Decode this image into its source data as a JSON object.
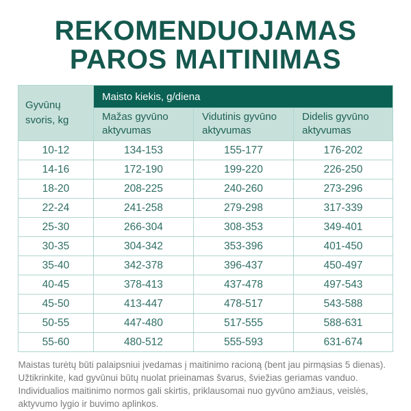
{
  "title": {
    "line1": "REKOMENDUOJAMAS",
    "line2": "PAROS MAITINIMAS"
  },
  "table": {
    "weight_header": "Gyvūnų\nsvoris, kg",
    "group_header": "Maisto kiekis, g/diena",
    "activity_headers": [
      "Mažas gyvūno aktyvumas",
      "Vidutinis gyvūno aktyvumas",
      "Didelis gyvūno aktyvumas"
    ]
  },
  "footer": {
    "text": "Maistas turėtų būti palaipsniui įvedamas į maitinimo racioną (bent jau pirmąsias 5 dienas). Užtikrinkite, kad gyvūnui būtų nuolat prieinamas švarus, šviežias geriamas vanduo. Individualios maitinimo normos gali skirtis, priklausomai nuo gyvūno amžiaus, veislės, aktyvumo lygio ir buvimo aplinkos."
  },
  "colors": {
    "title_text": "#15584E",
    "header_dark_bg": "#0B6154",
    "header_mint_bg": "#C7E1DA",
    "header_text": "#1D5F55",
    "body_text": "#2E6E64",
    "grid_border": "#AED5CD",
    "footer_text": "#7A7A7A"
  },
  "chart_data": {
    "type": "table",
    "title": "REKOMENDUOJAMAS PAROS MAITINIMAS",
    "column_group_label": "Maisto kiekis, g/diena",
    "columns": [
      "Gyvūnų svoris, kg",
      "Mažas gyvūno aktyvumas",
      "Vidutinis gyvūno aktyvumas",
      "Didelis gyvūno aktyvumas"
    ],
    "rows": [
      [
        "10-12",
        "134-153",
        "155-177",
        "176-202"
      ],
      [
        "14-16",
        "172-190",
        "199-220",
        "226-250"
      ],
      [
        "18-20",
        "208-225",
        "240-260",
        "273-296"
      ],
      [
        "22-24",
        "241-258",
        "279-298",
        "317-339"
      ],
      [
        "25-30",
        "266-304",
        "308-353",
        "349-401"
      ],
      [
        "30-35",
        "304-342",
        "353-396",
        "401-450"
      ],
      [
        "35-40",
        "342-378",
        "396-437",
        "450-497"
      ],
      [
        "40-45",
        "378-413",
        "437-478",
        "497-543"
      ],
      [
        "45-50",
        "413-447",
        "478-517",
        "543-588"
      ],
      [
        "50-55",
        "447-480",
        "517-555",
        "588-631"
      ],
      [
        "55-60",
        "480-512",
        "555-593",
        "631-674"
      ]
    ]
  }
}
